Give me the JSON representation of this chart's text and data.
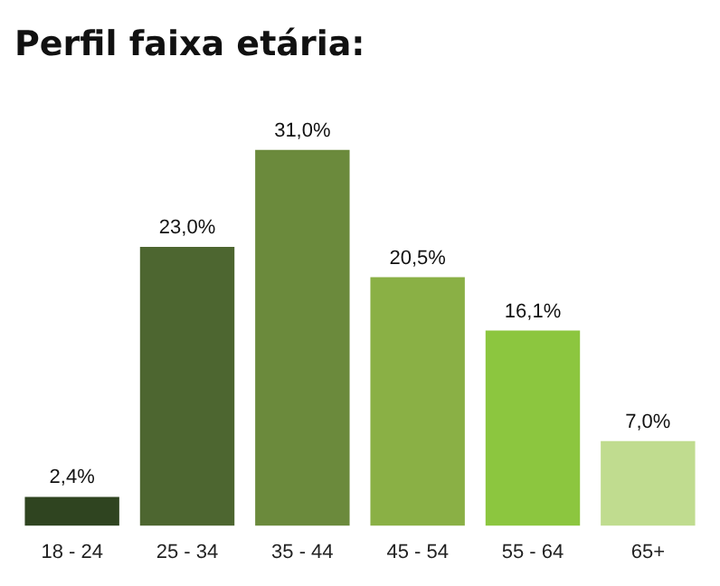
{
  "chart_data": {
    "type": "bar",
    "title": "Perfil faixa etária:",
    "categories": [
      "18 - 24",
      "25 - 34",
      "35 - 44",
      "45 - 54",
      "55 - 64",
      "65+"
    ],
    "values": [
      2.4,
      23.0,
      31.0,
      20.5,
      16.1,
      7.0
    ],
    "colors": [
      "#2f4420",
      "#4d6630",
      "#6b8a3c",
      "#8ab045",
      "#8cc63f",
      "#c0dc8f"
    ],
    "value_labels": [
      "2,4%",
      "23,0%",
      "31,0%",
      "20,5%",
      "16,1%",
      "7,0%"
    ],
    "grid": false,
    "legend": false
  }
}
